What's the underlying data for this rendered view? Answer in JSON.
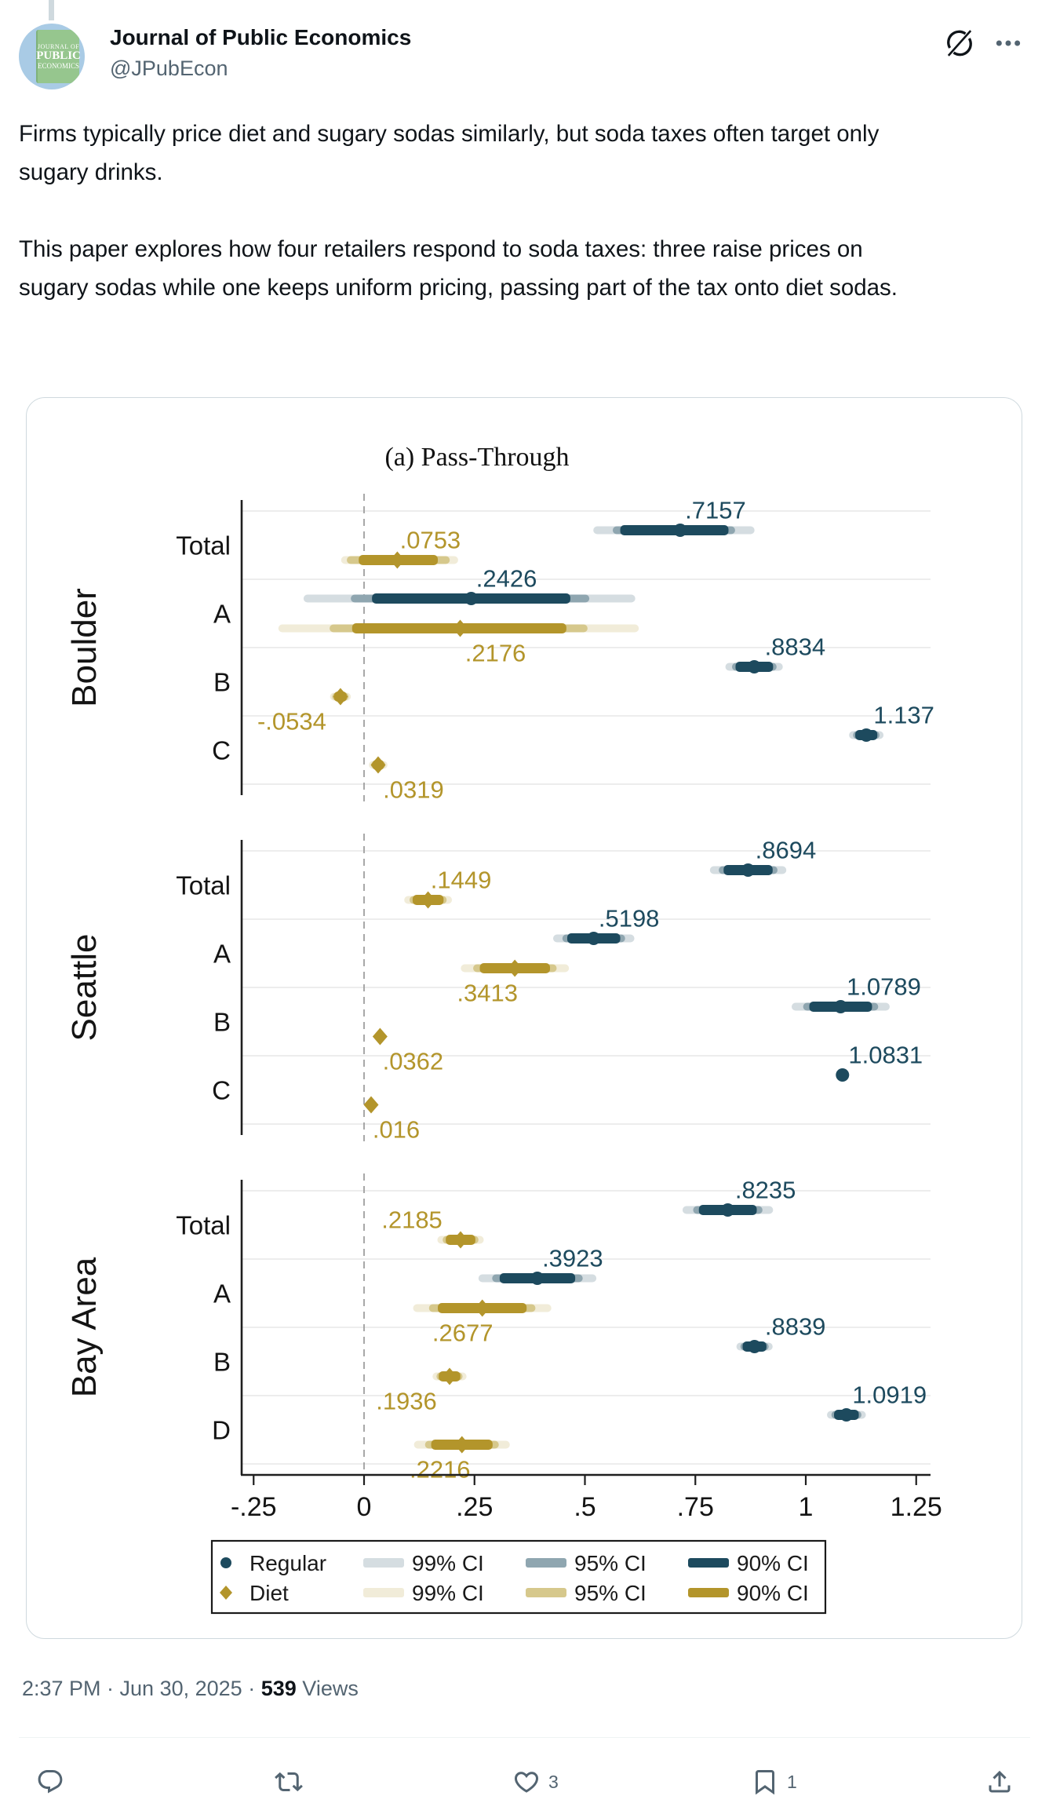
{
  "header": {
    "display_name": "Journal of Public Economics",
    "handle": "@JPubEcon",
    "avatar_lines": {
      "l1": "JOURNAL OF",
      "l2": "PUBLIC",
      "l3": "ECONOMICS"
    }
  },
  "tweet": {
    "p1": "Firms typically price diet and sugary sodas similarly, but soda taxes often target only sugary drinks.",
    "p2": "This paper explores how four retailers respond to soda taxes: three raise prices on sugary sodas while one keeps uniform pricing, passing part of the tax onto diet sodas."
  },
  "footer": {
    "time_date": "2:37 PM · Jun 30, 2025",
    "separator": "·",
    "views_count": "539",
    "views_label": "Views"
  },
  "actions": {
    "like_count": "3",
    "bookmark_count": "1"
  },
  "icons": {
    "grok": "grok-slash-circle",
    "more": "ellipsis",
    "reply": "speech-bubble",
    "repost": "retweet-arrows",
    "like": "heart-outline",
    "bookmark": "bookmark-outline",
    "share": "share-arrow-up"
  },
  "chart_data": {
    "type": "scatter",
    "subtype": "forest-dot-plot-with-confidence-intervals",
    "title": "(a) Pass-Through",
    "x_domain": [
      -0.28,
      1.28
    ],
    "x_ticks": [
      -0.25,
      0,
      0.25,
      0.5,
      0.75,
      1,
      1.25
    ],
    "x_tick_labels": [
      "-.25",
      "0",
      ".25",
      ".5",
      ".75",
      "1",
      "1.25"
    ],
    "zero_line": 0,
    "grid": true,
    "colors": {
      "regular": "#1d4a5e",
      "regular95": "#8fa6b0",
      "regular99": "#d5dde1",
      "diet": "#b3952b",
      "diet95": "#d6c88c",
      "diet99": "#f1ecd9",
      "grid": "#e7e7e7",
      "zero": "#9e9e9e",
      "axis": "#1f1f1f",
      "text": "#141414"
    },
    "panels": [
      {
        "name": "Boulder",
        "rows": [
          {
            "label": "Total",
            "regular": {
              "est": 0.7157,
              "label": ".7157",
              "ci99": [
                0.519,
                0.884
              ],
              "ci95": [
                0.563,
                0.84
              ],
              "ci90": [
                0.58,
                0.825
              ],
              "lp": [
                "a",
                45
              ]
            },
            "diet": {
              "est": 0.0753,
              "label": ".0753",
              "ci99": [
                -0.052,
                0.213
              ],
              "ci95": [
                -0.039,
                0.194
              ],
              "ci90": [
                -0.012,
                0.167
              ],
              "lp": [
                "a",
                42
              ]
            }
          },
          {
            "label": "A",
            "regular": {
              "est": 0.2426,
              "label": ".2426",
              "ci99": [
                -0.137,
                0.614
              ],
              "ci95": [
                -0.03,
                0.51
              ],
              "ci90": [
                0.018,
                0.467
              ],
              "lp": [
                "a",
                45
              ]
            },
            "diet": {
              "est": 0.2176,
              "label": ".2176",
              "ci99": [
                -0.194,
                0.622
              ],
              "ci95": [
                -0.078,
                0.506
              ],
              "ci90": [
                -0.027,
                0.458
              ],
              "lp": [
                "b",
                45
              ]
            }
          },
          {
            "label": "B",
            "regular": {
              "est": 0.8834,
              "label": ".8834",
              "ci99": [
                0.818,
                0.948
              ],
              "ci95": [
                0.833,
                0.934
              ],
              "ci90": [
                0.841,
                0.926
              ],
              "lp": [
                "a",
                52
              ]
            },
            "diet": {
              "est": -0.0534,
              "label": "-.0534",
              "ci99": [
                -0.077,
                -0.03
              ],
              "ci95": [
                -0.072,
                -0.035
              ],
              "ci90": [
                -0.068,
                -0.039
              ],
              "lp": [
                "b",
                -62
              ]
            }
          },
          {
            "label": "C",
            "regular": {
              "est": 1.137,
              "label": "1.137",
              "ci99": [
                1.098,
                1.176
              ],
              "ci95": [
                1.107,
                1.167
              ],
              "ci90": [
                1.112,
                1.162
              ],
              "lp": [
                "a",
                48
              ]
            },
            "diet": {
              "est": 0.0319,
              "label": ".0319",
              "ci99": [
                0.011,
                0.053
              ],
              "ci95": [
                0.016,
                0.048
              ],
              "ci90": [
                0.019,
                0.045
              ],
              "lp": [
                "b",
                45
              ]
            }
          }
        ]
      },
      {
        "name": "Seattle",
        "rows": [
          {
            "label": "Total",
            "regular": {
              "est": 0.8694,
              "label": ".8694",
              "ci99": [
                0.783,
                0.956
              ],
              "ci95": [
                0.803,
                0.936
              ],
              "ci90": [
                0.814,
                0.925
              ],
              "lp": [
                "a",
                48
              ]
            },
            "diet": {
              "est": 0.1449,
              "label": ".1449",
              "ci99": [
                0.091,
                0.199
              ],
              "ci95": [
                0.103,
                0.187
              ],
              "ci90": [
                0.11,
                0.18
              ],
              "lp": [
                "a",
                42
              ]
            }
          },
          {
            "label": "A",
            "regular": {
              "est": 0.5198,
              "label": ".5198",
              "ci99": [
                0.428,
                0.612
              ],
              "ci95": [
                0.449,
                0.591
              ],
              "ci90": [
                0.46,
                0.58
              ],
              "lp": [
                "a",
                45
              ]
            },
            "diet": {
              "est": 0.3413,
              "label": ".3413",
              "ci99": [
                0.219,
                0.464
              ],
              "ci95": [
                0.247,
                0.436
              ],
              "ci90": [
                0.262,
                0.421
              ],
              "lp": [
                "b",
                -35
              ]
            }
          },
          {
            "label": "B",
            "regular": {
              "est": 1.0789,
              "label": "1.0789",
              "ci99": [
                0.968,
                1.19
              ],
              "ci95": [
                0.994,
                1.164
              ],
              "ci90": [
                1.008,
                1.15
              ],
              "lp": [
                "a",
                55
              ]
            },
            "diet": {
              "est": 0.0362,
              "label": ".0362",
              "ci99": [
                0.024,
                0.048
              ],
              "ci95": [
                0.027,
                0.045
              ],
              "ci90": [
                0.029,
                0.043
              ],
              "lp": [
                "b",
                42
              ]
            }
          },
          {
            "label": "C",
            "regular": {
              "est": 1.0831,
              "label": "1.0831",
              "ci99": [
                1.071,
                1.095
              ],
              "ci95": [
                1.074,
                1.092
              ],
              "ci90": [
                1.076,
                1.09
              ],
              "lp": [
                "a",
                55
              ]
            },
            "diet": {
              "est": 0.016,
              "label": ".016",
              "ci99": [
                0.005,
                0.027
              ],
              "ci95": [
                0.008,
                0.024
              ],
              "ci90": [
                0.01,
                0.022
              ],
              "lp": [
                "b",
                32
              ]
            }
          }
        ]
      },
      {
        "name": "Bay Area",
        "rows": [
          {
            "label": "Total",
            "regular": {
              "est": 0.8235,
              "label": ".8235",
              "ci99": [
                0.721,
                0.926
              ],
              "ci95": [
                0.745,
                0.902
              ],
              "ci90": [
                0.758,
                0.889
              ],
              "lp": [
                "a",
                48
              ]
            },
            "diet": {
              "est": 0.2185,
              "label": ".2185",
              "ci99": [
                0.166,
                0.271
              ],
              "ci95": [
                0.178,
                0.259
              ],
              "ci90": [
                0.185,
                0.252
              ],
              "lp": [
                "a",
                -62
              ]
            }
          },
          {
            "label": "A",
            "regular": {
              "est": 0.3923,
              "label": ".3923",
              "ci99": [
                0.259,
                0.526
              ],
              "ci95": [
                0.29,
                0.495
              ],
              "ci90": [
                0.307,
                0.478
              ],
              "lp": [
                "a",
                45
              ]
            },
            "diet": {
              "est": 0.2677,
              "label": ".2677",
              "ci99": [
                0.111,
                0.424
              ],
              "ci95": [
                0.147,
                0.388
              ],
              "ci90": [
                0.167,
                0.368
              ],
              "lp": [
                "b",
                -25
              ]
            }
          },
          {
            "label": "B",
            "regular": {
              "est": 0.8839,
              "label": ".8839",
              "ci99": [
                0.843,
                0.925
              ],
              "ci95": [
                0.852,
                0.916
              ],
              "ci90": [
                0.857,
                0.911
              ],
              "lp": [
                "a",
                52
              ]
            },
            "diet": {
              "est": 0.1936,
              "label": ".1936",
              "ci99": [
                0.155,
                0.232
              ],
              "ci95": [
                0.164,
                0.223
              ],
              "ci90": [
                0.169,
                0.218
              ],
              "lp": [
                "b",
                -55
              ]
            }
          },
          {
            "label": "D",
            "regular": {
              "est": 1.0919,
              "label": "1.0919",
              "ci99": [
                1.048,
                1.136
              ],
              "ci95": [
                1.058,
                1.126
              ],
              "ci90": [
                1.064,
                1.12
              ],
              "lp": [
                "a",
                55
              ]
            },
            "diet": {
              "est": 0.2216,
              "label": ".2216",
              "ci99": [
                0.113,
                0.33
              ],
              "ci95": [
                0.138,
                0.305
              ],
              "ci90": [
                0.152,
                0.291
              ],
              "lp": [
                "b",
                -28
              ]
            }
          }
        ]
      },
      {
        "note": "lp = label placement: a=above line, b=below line, number = horizontal px offset"
      }
    ],
    "legend": {
      "position": "bottom",
      "rows": [
        {
          "series": "Regular",
          "marker": "circle",
          "cis": [
            "99% CI",
            "95% CI",
            "90% CI"
          ]
        },
        {
          "series": "Diet",
          "marker": "diamond",
          "cis": [
            "99% CI",
            "95% CI",
            "90% CI"
          ]
        }
      ]
    }
  }
}
